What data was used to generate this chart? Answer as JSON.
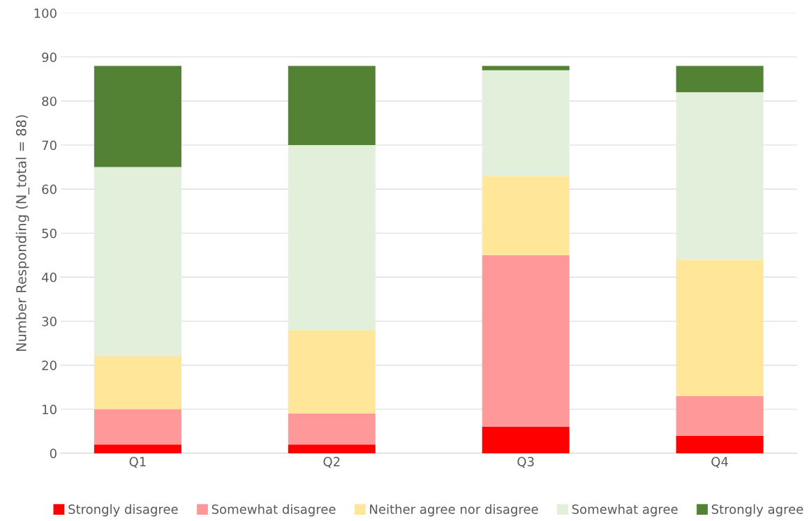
{
  "chart_data": {
    "type": "bar",
    "stacked": true,
    "ylabel": "Number Responding (N_total = 88)",
    "categories": [
      "Q1",
      "Q2",
      "Q3",
      "Q4"
    ],
    "series": [
      {
        "name": "Strongly disagree",
        "color": "#ff0000",
        "values": [
          2,
          2,
          6,
          4
        ]
      },
      {
        "name": "Somewhat disagree",
        "color": "#ff9999",
        "values": [
          8,
          7,
          39,
          9
        ]
      },
      {
        "name": "Neither agree nor disagree",
        "color": "#ffe699",
        "values": [
          12,
          19,
          18,
          31
        ]
      },
      {
        "name": "Somewhat agree",
        "color": "#e2efda",
        "values": [
          43,
          42,
          24,
          38
        ]
      },
      {
        "name": "Strongly agree",
        "color": "#548235",
        "values": [
          23,
          18,
          1,
          6
        ]
      }
    ],
    "ylim": [
      0,
      100
    ],
    "yticks": [
      0,
      10,
      20,
      30,
      40,
      50,
      60,
      70,
      80,
      90,
      100
    ],
    "grid": "y",
    "legend": "bottom"
  }
}
